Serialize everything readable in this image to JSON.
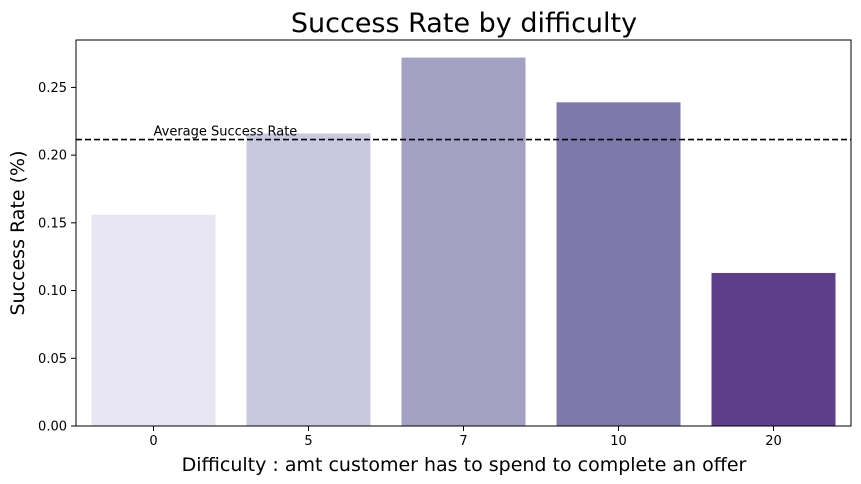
{
  "chart_data": {
    "type": "bar",
    "title": "Success Rate by difficulty",
    "xlabel": "Difficulty : amt customer has to spend to complete an offer",
    "ylabel": "Success Rate (%)",
    "categories": [
      "0",
      "5",
      "7",
      "10",
      "20"
    ],
    "values": [
      0.156,
      0.216,
      0.272,
      0.239,
      0.113
    ],
    "colors": [
      "#e7e5f1",
      "#c8c9df",
      "#a3a0c4",
      "#7f79ab",
      "#5e3e8a"
    ],
    "ylim": [
      0,
      0.285
    ],
    "yticks": [
      0.0,
      0.05,
      0.1,
      0.15,
      0.2,
      0.25
    ],
    "ytick_labels": [
      "0.00",
      "0.05",
      "0.10",
      "0.15",
      "0.20",
      "0.25"
    ],
    "average_line": {
      "value": 0.2115,
      "label": "Average Success Rate",
      "style": "dashed",
      "color": "#000000"
    },
    "grid": false,
    "legend": "none"
  }
}
